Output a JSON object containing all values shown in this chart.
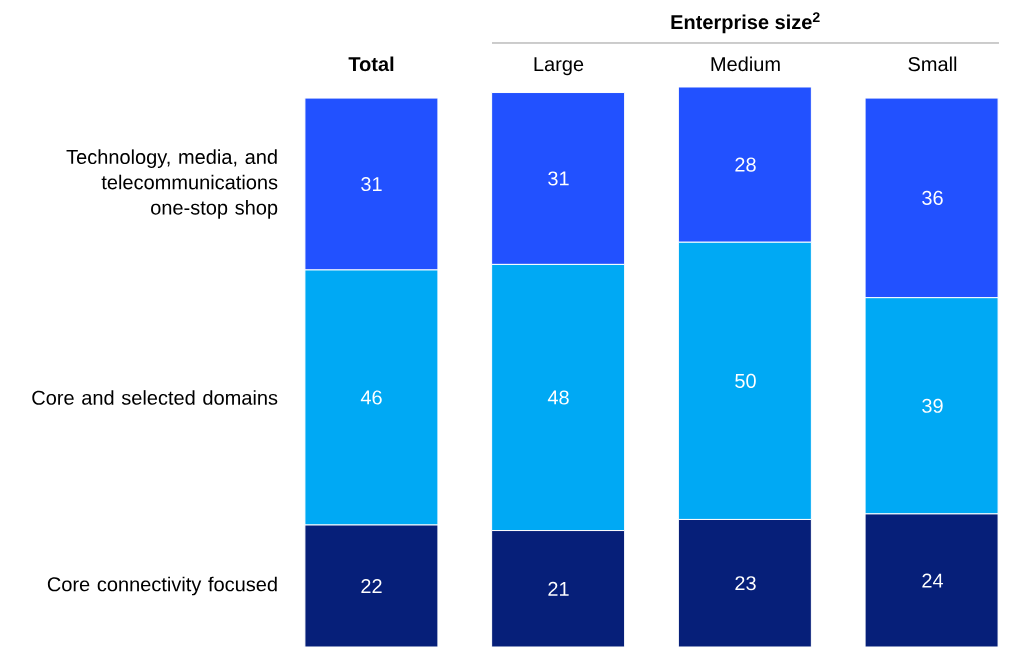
{
  "chart_data": {
    "type": "bar",
    "stacked": true,
    "data_labels": true,
    "legend": false,
    "categories": [
      "Total",
      "Large",
      "Medium",
      "Small"
    ],
    "annotations": [
      "Enterprise size$^{2}$"
    ],
    "series": [
      {
        "name": "Core connectivity focused",
        "color": "#061f79",
        "values": [
          22,
          21,
          23,
          24
        ]
      },
      {
        "name": "Core and selected domains",
        "color": "#00a9f4",
        "values": [
          46,
          48,
          50,
          39
        ]
      },
      {
        "name": "Technology, media, and telecommunications one-stop shop",
        "color": "#2251ff",
        "values": [
          31,
          31,
          28,
          36
        ]
      }
    ]
  }
}
